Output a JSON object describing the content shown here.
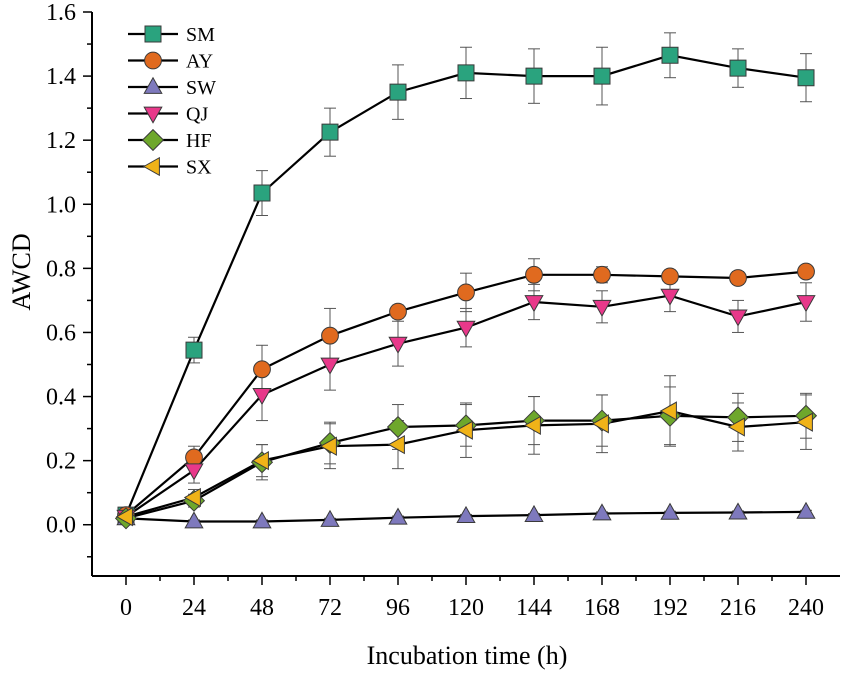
{
  "chart_data": {
    "type": "line",
    "title": "",
    "xlabel": "Incubation time (h)",
    "ylabel": "AWCD",
    "xlim": [
      -12,
      252
    ],
    "ylim": [
      -0.16,
      1.6
    ],
    "x": [
      0,
      24,
      48,
      72,
      96,
      120,
      144,
      168,
      192,
      216,
      240
    ],
    "x_ticks": [
      "0",
      "24",
      "48",
      "72",
      "96",
      "120",
      "144",
      "168",
      "192",
      "216",
      "240"
    ],
    "y_ticks": [
      "0.0",
      "0.2",
      "0.4",
      "0.6",
      "0.8",
      "1.0",
      "1.2",
      "1.4",
      "1.6"
    ],
    "legend_position": "top-left",
    "grid": false,
    "series": [
      {
        "name": "SM",
        "color": "#2aa37e",
        "marker": "square",
        "values": [
          0.03,
          0.545,
          1.035,
          1.225,
          1.35,
          1.41,
          1.4,
          1.4,
          1.465,
          1.425,
          1.395
        ],
        "errors": [
          0.01,
          0.04,
          0.07,
          0.075,
          0.085,
          0.08,
          0.085,
          0.09,
          0.07,
          0.06,
          0.075
        ]
      },
      {
        "name": "AY",
        "color": "#e06a1f",
        "marker": "circle",
        "values": [
          0.03,
          0.21,
          0.485,
          0.59,
          0.665,
          0.725,
          0.78,
          0.78,
          0.775,
          0.77,
          0.79
        ],
        "errors": [
          0.01,
          0.035,
          0.075,
          0.085,
          0.02,
          0.06,
          0.05,
          0.025,
          0.02,
          0.02,
          0.015
        ]
      },
      {
        "name": "SW",
        "color": "#7e79bd",
        "marker": "triangle-up",
        "values": [
          0.02,
          0.01,
          0.01,
          0.015,
          0.022,
          0.027,
          0.03,
          0.035,
          0.037,
          0.038,
          0.04
        ],
        "errors": [
          0.005,
          0.005,
          0.005,
          0.005,
          0.005,
          0.005,
          0.005,
          0.005,
          0.005,
          0.005,
          0.005
        ]
      },
      {
        "name": "QJ",
        "color": "#e8388a",
        "marker": "triangle-down",
        "values": [
          0.025,
          0.17,
          0.405,
          0.5,
          0.565,
          0.615,
          0.695,
          0.68,
          0.715,
          0.65,
          0.695
        ],
        "errors": [
          0.01,
          0.04,
          0.08,
          0.08,
          0.07,
          0.06,
          0.055,
          0.05,
          0.05,
          0.05,
          0.06
        ]
      },
      {
        "name": "HF",
        "color": "#6ea72c",
        "marker": "diamond",
        "values": [
          0.02,
          0.075,
          0.195,
          0.255,
          0.305,
          0.31,
          0.325,
          0.325,
          0.34,
          0.335,
          0.34
        ],
        "errors": [
          0.01,
          0.02,
          0.055,
          0.065,
          0.07,
          0.065,
          0.075,
          0.08,
          0.09,
          0.075,
          0.07
        ]
      },
      {
        "name": "SX",
        "color": "#f0b318",
        "marker": "triangle-left",
        "values": [
          0.025,
          0.085,
          0.2,
          0.245,
          0.25,
          0.295,
          0.31,
          0.315,
          0.355,
          0.305,
          0.32
        ],
        "errors": [
          0.01,
          0.025,
          0.05,
          0.07,
          0.075,
          0.085,
          0.09,
          0.09,
          0.11,
          0.075,
          0.085
        ]
      }
    ]
  }
}
